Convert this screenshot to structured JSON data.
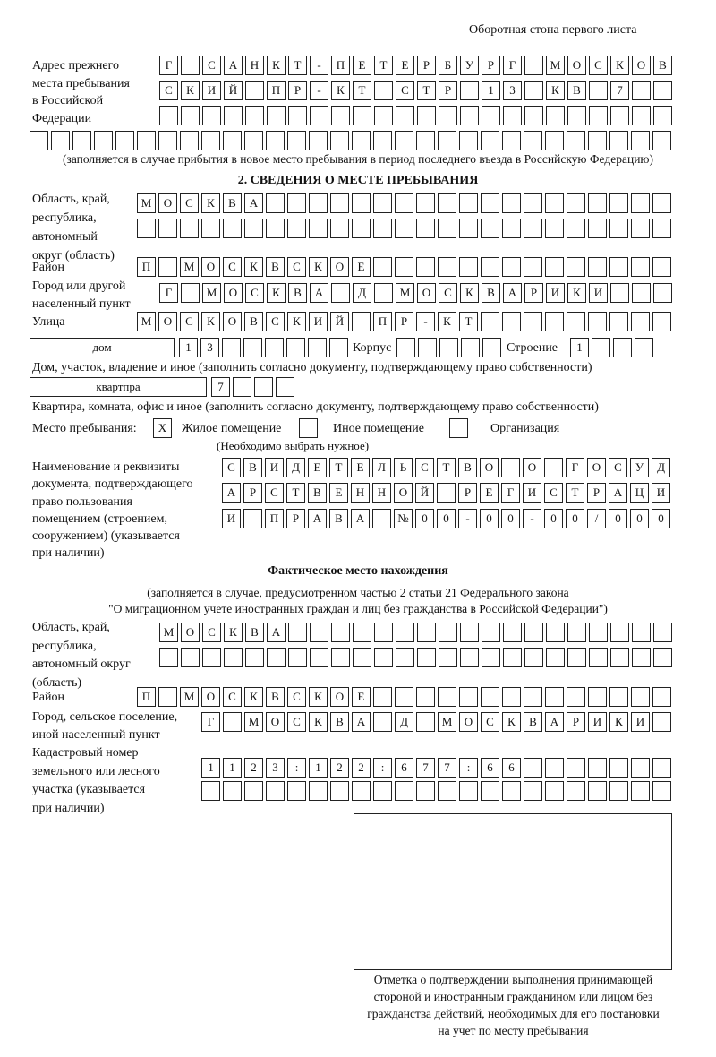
{
  "header": "Оборотная стона первого листа",
  "prev_address": {
    "label": "Адрес прежнего\nместа пребывания\nв Российской\nФедерации",
    "rows": [
      [
        "Г",
        "",
        "С",
        "А",
        "Н",
        "К",
        "Т",
        "-",
        "П",
        "Е",
        "Т",
        "Е",
        "Р",
        "Б",
        "У",
        "Р",
        "Г",
        "",
        "М",
        "О",
        "С",
        "К",
        "О",
        "В"
      ],
      [
        "С",
        "К",
        "И",
        "Й",
        "",
        "П",
        "Р",
        "-",
        "К",
        "Т",
        "",
        "С",
        "Т",
        "Р",
        "",
        "1",
        "3",
        "",
        "К",
        "В",
        "",
        "7",
        "",
        ""
      ],
      [
        "",
        "",
        "",
        "",
        "",
        "",
        "",
        "",
        "",
        "",
        "",
        "",
        "",
        "",
        "",
        "",
        "",
        "",
        "",
        "",
        "",
        "",
        "",
        ""
      ]
    ],
    "row_full": [
      "",
      "",
      "",
      "",
      "",
      "",
      "",
      "",
      "",
      "",
      "",
      "",
      "",
      "",
      "",
      "",
      "",
      "",
      "",
      "",
      "",
      "",
      "",
      "",
      "",
      "",
      "",
      "",
      "",
      ""
    ],
    "note": "(заполняется в случае прибытия в новое место пребывания в период последнего въезда в Российскую Федерацию)"
  },
  "section2": {
    "title": "2. СВЕДЕНИЯ О МЕСТЕ ПРЕБЫВАНИЯ",
    "region_label": "Область, край,\nреспублика,\nавтономный\nокруг (область)",
    "region_rows": [
      [
        "М",
        "О",
        "С",
        "К",
        "В",
        "А",
        "",
        "",
        "",
        "",
        "",
        "",
        "",
        "",
        "",
        "",
        "",
        "",
        "",
        "",
        "",
        "",
        "",
        "",
        ""
      ],
      [
        "",
        "",
        "",
        "",
        "",
        "",
        "",
        "",
        "",
        "",
        "",
        "",
        "",
        "",
        "",
        "",
        "",
        "",
        "",
        "",
        "",
        "",
        "",
        "",
        ""
      ]
    ],
    "district_label": "Район",
    "district": [
      "П",
      "",
      "М",
      "О",
      "С",
      "К",
      "В",
      "С",
      "К",
      "О",
      "Е",
      "",
      "",
      "",
      "",
      "",
      "",
      "",
      "",
      "",
      "",
      "",
      "",
      "",
      ""
    ],
    "city_label": "Город или другой\nнаселенный пункт",
    "city": [
      "Г",
      "",
      "М",
      "О",
      "С",
      "К",
      "В",
      "А",
      "",
      "Д",
      "",
      "М",
      "О",
      "С",
      "К",
      "В",
      "А",
      "Р",
      "И",
      "К",
      "И",
      "",
      "",
      ""
    ],
    "street_label": "Улица",
    "street": [
      "М",
      "О",
      "С",
      "К",
      "О",
      "В",
      "С",
      "К",
      "И",
      "Й",
      "",
      "П",
      "Р",
      "-",
      "К",
      "Т",
      "",
      "",
      "",
      "",
      "",
      "",
      "",
      "",
      ""
    ],
    "house_type": "дом",
    "house": [
      "1",
      "3",
      "",
      "",
      "",
      "",
      "",
      ""
    ],
    "korpus_label": "Корпус",
    "korpus": [
      "",
      "",
      "",
      "",
      ""
    ],
    "building_label": "Строение",
    "building": [
      "1",
      "",
      "",
      ""
    ],
    "house_note": "Дом, участок, владение и иное (заполнить согласно документу, подтверждающему право собственности)",
    "flat_type": "квартпра",
    "flat": [
      "7",
      "",
      "",
      ""
    ],
    "flat_note": "Квартира, комната, офис и иное (заполнить согласно документу, подтверждающему право собственности)",
    "stay_label": "Место пребывания:",
    "stay_options": [
      {
        "label": "Жилое помещение",
        "mark": "X"
      },
      {
        "label": "Иное помещение",
        "mark": ""
      },
      {
        "label": "Организация",
        "mark": ""
      }
    ],
    "stay_note": "(Необходимо выбрать нужное)",
    "doc_label": "Наименование и реквизиты\nдокумента, подтверждающего\nправо пользования\nпомещением (строением,\nсооружением) (указывается\nпри наличии)",
    "doc_rows": [
      [
        "С",
        "В",
        "И",
        "Д",
        "Е",
        "Т",
        "Е",
        "Л",
        "Ь",
        "С",
        "Т",
        "В",
        "О",
        "",
        "О",
        "",
        "Г",
        "О",
        "С",
        "У",
        "Д"
      ],
      [
        "А",
        "Р",
        "С",
        "Т",
        "В",
        "Е",
        "Н",
        "Н",
        "О",
        "Й",
        "",
        "Р",
        "Е",
        "Г",
        "И",
        "С",
        "Т",
        "Р",
        "А",
        "Ц",
        "И"
      ],
      [
        "И",
        "",
        "П",
        "Р",
        "А",
        "В",
        "А",
        "",
        "№",
        "0",
        "0",
        "-",
        "0",
        "0",
        "-",
        "0",
        "0",
        "/",
        "0",
        "0",
        "0"
      ]
    ]
  },
  "actual": {
    "title": "Фактическое место нахождения",
    "note1": "(заполняется в случае, предусмотренном частью 2 статьи 21 Федерального закона",
    "note2": "\"О миграционном учете иностранных граждан и лиц без гражданства в Российской Федерации\")",
    "region_label": "Область, край,\nреспублика,\nавтономный округ\n(область)",
    "region_rows": [
      [
        "М",
        "О",
        "С",
        "К",
        "В",
        "А",
        "",
        "",
        "",
        "",
        "",
        "",
        "",
        "",
        "",
        "",
        "",
        "",
        "",
        "",
        "",
        "",
        "",
        ""
      ],
      [
        "",
        "",
        "",
        "",
        "",
        "",
        "",
        "",
        "",
        "",
        "",
        "",
        "",
        "",
        "",
        "",
        "",
        "",
        "",
        "",
        "",
        "",
        "",
        ""
      ]
    ],
    "district_label": "Район",
    "district": [
      "П",
      "",
      "М",
      "О",
      "С",
      "К",
      "В",
      "С",
      "К",
      "О",
      "Е",
      "",
      "",
      "",
      "",
      "",
      "",
      "",
      "",
      "",
      "",
      "",
      "",
      "",
      ""
    ],
    "city_label": "Город, сельское поселение,\nиной населенный пункт",
    "city": [
      "Г",
      "",
      "М",
      "О",
      "С",
      "К",
      "В",
      "А",
      "",
      "Д",
      "",
      "М",
      "О",
      "С",
      "К",
      "В",
      "А",
      "Р",
      "И",
      "К",
      "И",
      ""
    ],
    "cadastral_label": "Кадастровый номер\nземельного или лесного\nучастка (указывается\nпри наличии)",
    "cadastral_rows": [
      [
        "1",
        "1",
        "2",
        "3",
        ":",
        "1",
        "2",
        "2",
        ":",
        "6",
        "7",
        "7",
        ":",
        "6",
        "6",
        "",
        "",
        "",
        "",
        "",
        "",
        ""
      ],
      [
        "",
        "",
        "",
        "",
        "",
        "",
        "",
        "",
        "",
        "",
        "",
        "",
        "",
        "",
        "",
        "",
        "",
        "",
        "",
        "",
        "",
        ""
      ]
    ]
  },
  "stamp_caption": "Отметка о подтверждении выполнения принимающей\nстороной и иностранным гражданином или лицом без\nгражданства действий, необходимых для его постановки\nна учет по месту пребывания"
}
